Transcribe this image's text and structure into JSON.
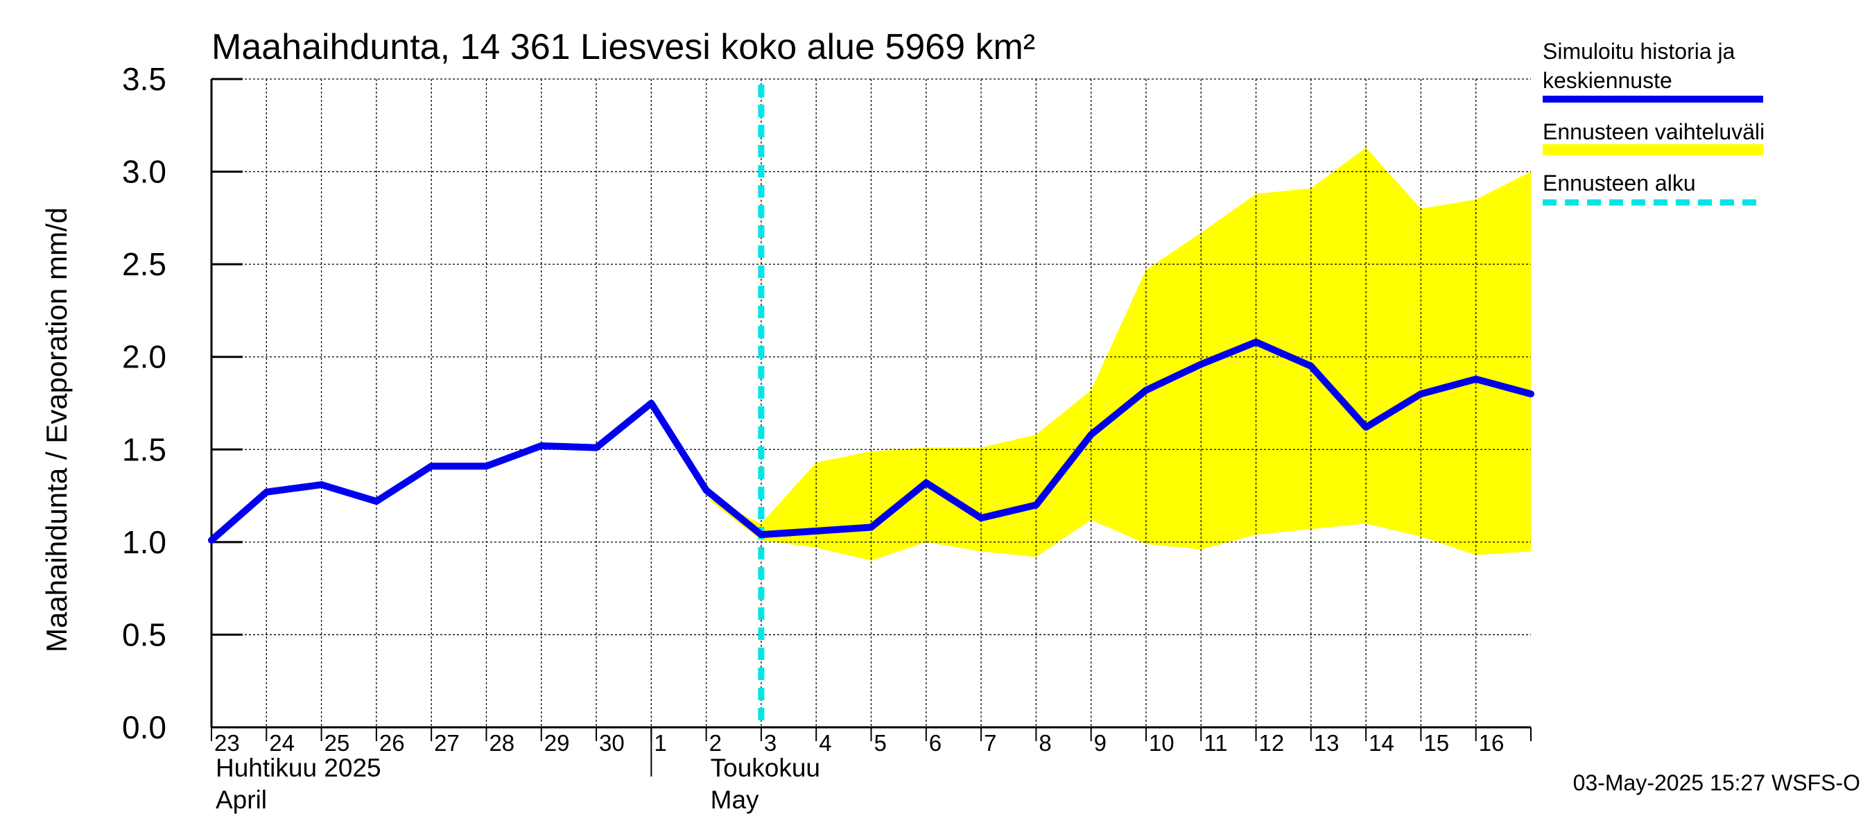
{
  "chart_data": {
    "type": "line",
    "title": "Maahaihdunta, 14 361 Liesvesi koko alue 5969 km²",
    "ylabel": "Maahaihdunta / Evaporation   mm/d",
    "ylim": [
      0,
      3.5
    ],
    "yticks": [
      "0.0",
      "0.5",
      "1.0",
      "1.5",
      "2.0",
      "2.5",
      "3.0",
      "3.5"
    ],
    "ytick_values": [
      0,
      0.5,
      1.0,
      1.5,
      2.0,
      2.5,
      3.0,
      3.5
    ],
    "xlim": [
      0,
      24
    ],
    "x_day_labels": [
      "23",
      "24",
      "25",
      "26",
      "27",
      "28",
      "29",
      "30",
      "1",
      "2",
      "3",
      "4",
      "5",
      "6",
      "7",
      "8",
      "9",
      "10",
      "11",
      "12",
      "13",
      "14",
      "15",
      "16"
    ],
    "month_labels": [
      {
        "line1": "Huhtikuu  2025",
        "line2": "April",
        "x": 0
      },
      {
        "line1": "Toukokuu",
        "line2": "May",
        "x": 9
      }
    ],
    "month_boundary_x": 8,
    "grid": true,
    "forecast_start_x": 10,
    "series": [
      {
        "name": "Simuloitu historia ja keskiennuste",
        "color": "#0000ee",
        "x": [
          0,
          1,
          2,
          3,
          4,
          5,
          6,
          7,
          8,
          9,
          10,
          11,
          12,
          13,
          14,
          15,
          16,
          17,
          18,
          19,
          20,
          21,
          22,
          23,
          24
        ],
        "y": [
          1.01,
          1.27,
          1.31,
          1.22,
          1.41,
          1.41,
          1.52,
          1.51,
          1.75,
          1.28,
          1.04,
          1.06,
          1.08,
          1.32,
          1.13,
          1.2,
          1.58,
          1.82,
          1.96,
          2.08,
          1.95,
          1.62,
          1.8,
          1.88,
          1.8
        ]
      }
    ],
    "band": {
      "name": "Ennusteen vaihteluväli",
      "color": "#ffff00",
      "x": [
        9,
        10,
        11,
        12,
        13,
        14,
        15,
        16,
        17,
        18,
        19,
        20,
        21,
        22,
        23,
        24
      ],
      "upper": [
        1.24,
        1.1,
        1.43,
        1.49,
        1.51,
        1.51,
        1.58,
        1.82,
        2.47,
        2.67,
        2.88,
        2.91,
        3.13,
        2.8,
        2.85,
        3.0
      ],
      "lower": [
        1.24,
        1.01,
        0.97,
        0.9,
        1.0,
        0.95,
        0.92,
        1.12,
        0.99,
        0.96,
        1.04,
        1.07,
        1.1,
        1.03,
        0.93,
        0.95
      ]
    },
    "legend": {
      "placement": "right",
      "items": [
        {
          "label_line1": "Simuloitu historia ja",
          "label_line2": "keskiennuste",
          "color": "#0000ee",
          "style": "solid"
        },
        {
          "label_line1": "Ennusteen vaihteluväli",
          "label_line2": "",
          "color": "#ffff00",
          "style": "solid"
        },
        {
          "label_line1": "Ennusteen alku",
          "label_line2": "",
          "color": "#00e5e5",
          "style": "dashed"
        }
      ]
    },
    "footer": "03-May-2025 15:27 WSFS-O"
  }
}
